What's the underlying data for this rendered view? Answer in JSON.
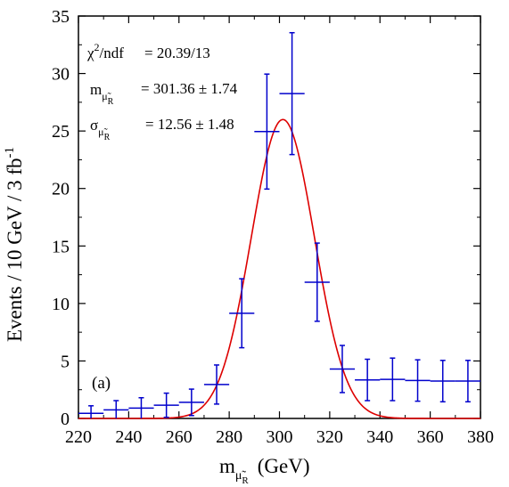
{
  "chart_data": {
    "type": "scatter",
    "title": "",
    "xlabel": "m",
    "xlabel_sub": "μ̃",
    "xlabel_subsub": "R",
    "xlabel_unit": "(GeV)",
    "ylabel": "Events / 10 GeV / 3 fb",
    "ylabel_sup": "-1",
    "xlim": [
      220,
      380
    ],
    "ylim": [
      0,
      35
    ],
    "xticks": [
      220,
      240,
      260,
      280,
      300,
      320,
      340,
      360,
      380
    ],
    "yticks": [
      0,
      5,
      10,
      15,
      20,
      25,
      30,
      35
    ],
    "grid": false,
    "panel_label": "(a)",
    "stats": {
      "chi2_label": "χ",
      "chi2_sup": "2",
      "chi2_rest": "/ndf",
      "chi2_value": "= 20.39/13",
      "mass_label": "m",
      "mass_sub": "μ̃",
      "mass_subsub": "R",
      "mass_value": "= 301.36 ± 1.74",
      "sigma_label": "σ",
      "sigma_sub": "μ̃",
      "sigma_subsub": "R",
      "sigma_value": "= 12.56 ± 1.48"
    },
    "series": [
      {
        "kind": "histogram-errorbars",
        "color": "#0000cc",
        "x": [
          225,
          235,
          245,
          255,
          265,
          275,
          285,
          295,
          305,
          315,
          325,
          335,
          345,
          355,
          365,
          375
        ],
        "y": [
          0.45,
          0.75,
          0.9,
          1.15,
          1.4,
          2.95,
          9.15,
          24.95,
          28.25,
          11.85,
          4.3,
          3.35,
          3.4,
          3.3,
          3.25,
          3.25
        ],
        "yerr": [
          0.65,
          0.8,
          0.9,
          1.05,
          1.15,
          1.7,
          3.0,
          5.0,
          5.3,
          3.4,
          2.05,
          1.8,
          1.85,
          1.8,
          1.8,
          1.8
        ],
        "xerr": [
          5,
          5,
          5,
          5,
          5,
          5,
          5,
          5,
          5,
          5,
          5,
          5,
          5,
          5,
          5,
          5
        ]
      },
      {
        "kind": "gaussian-fit-plus-background",
        "color": "#dd0000",
        "mean": 301.36,
        "sigma": 12.56,
        "amplitude": 26.0,
        "bg_low_slope_start": 0.35,
        "bg_low_slope_end": 3.3
      }
    ]
  }
}
